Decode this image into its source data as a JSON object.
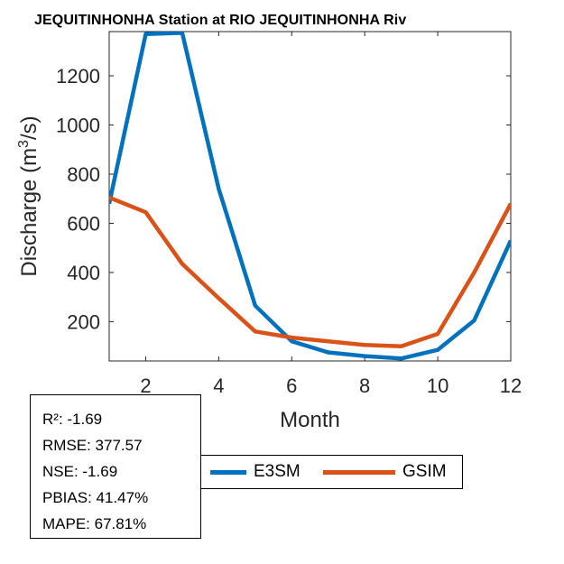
{
  "chart_data": {
    "type": "line",
    "title": "JEQUITINHONHA  Station at  RIO JEQUITINHONHA  Riv",
    "xlabel": "Month",
    "ylabel": "Discharge (m",
    "ylabel_sup": "3",
    "ylabel_suffix": "/s)",
    "xlim": [
      1,
      12
    ],
    "ylim": [
      40,
      1380
    ],
    "xticks": [
      2,
      4,
      6,
      8,
      10,
      12
    ],
    "yticks": [
      200,
      400,
      600,
      800,
      1000,
      1200
    ],
    "x": [
      1,
      2,
      3,
      4,
      5,
      6,
      7,
      8,
      9,
      10,
      11,
      12
    ],
    "series": [
      {
        "name": "E3SM",
        "color": "#0072BD",
        "values": [
          680,
          1370,
          1375,
          740,
          265,
          120,
          75,
          60,
          50,
          85,
          205,
          530
        ]
      },
      {
        "name": "GSIM",
        "color": "#D95319",
        "values": [
          705,
          645,
          435,
          295,
          160,
          135,
          120,
          105,
          100,
          150,
          400,
          680
        ]
      }
    ],
    "legend": "bottom"
  },
  "stats": [
    "R²: -1.69",
    "RMSE: 377.57",
    "NSE: -1.69",
    "PBIAS: 41.47%",
    "MAPE: 67.81%"
  ]
}
